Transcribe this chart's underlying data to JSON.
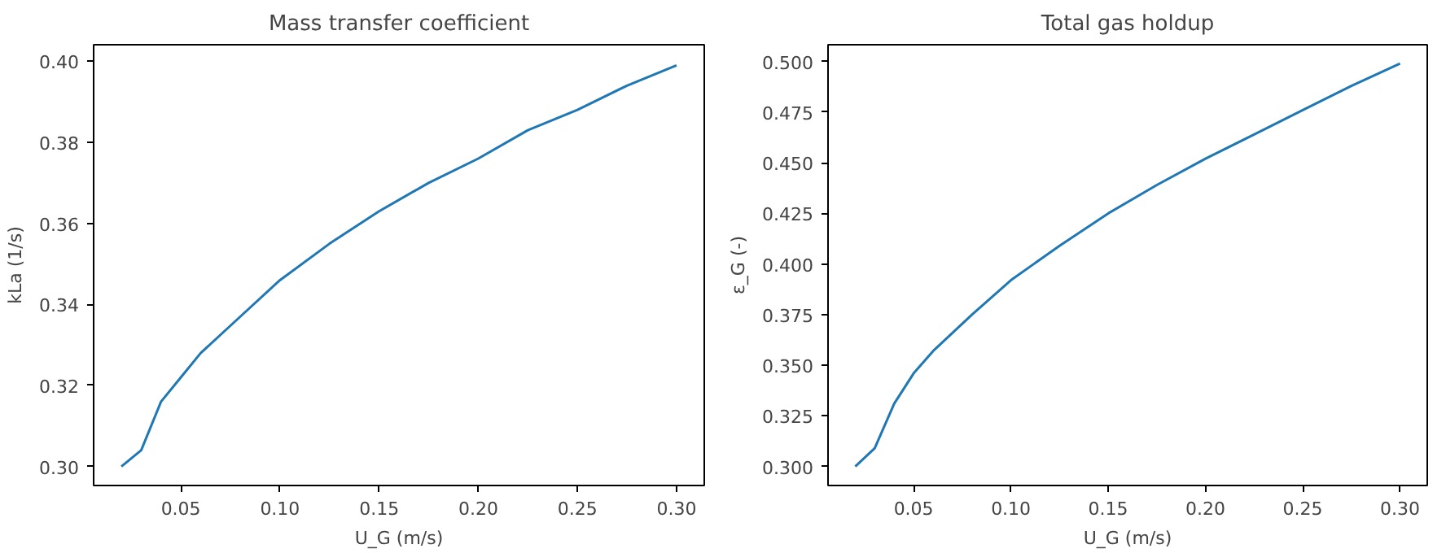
{
  "chart_data": [
    {
      "type": "line",
      "title": "Mass transfer coefficient",
      "xlabel": "U_G (m/s)",
      "ylabel": "kLa (1/s)",
      "x": [
        0.02,
        0.03,
        0.04,
        0.05,
        0.06,
        0.08,
        0.1,
        0.125,
        0.15,
        0.175,
        0.2,
        0.225,
        0.25,
        0.275,
        0.3
      ],
      "series": [
        {
          "color": "#1f77b4",
          "values": [
            0.3,
            0.304,
            0.316,
            0.322,
            0.328,
            0.337,
            0.346,
            0.355,
            0.363,
            0.37,
            0.376,
            0.383,
            0.388,
            0.394,
            0.399
          ]
        }
      ],
      "xlim": [
        0.006,
        0.314
      ],
      "xticks": [
        {
          "value": 0.05,
          "label": "0.05"
        },
        {
          "value": 0.1,
          "label": "0.10"
        },
        {
          "value": 0.15,
          "label": "0.15"
        },
        {
          "value": 0.2,
          "label": "0.20"
        },
        {
          "value": 0.25,
          "label": "0.25"
        },
        {
          "value": 0.3,
          "label": "0.30"
        }
      ],
      "ylim": [
        0.2953,
        0.4041
      ],
      "yticks": [
        {
          "value": 0.3,
          "label": "0.30"
        },
        {
          "value": 0.32,
          "label": "0.32"
        },
        {
          "value": 0.34,
          "label": "0.34"
        },
        {
          "value": 0.36,
          "label": "0.36"
        },
        {
          "value": 0.38,
          "label": "0.38"
        },
        {
          "value": 0.4,
          "label": "0.40"
        }
      ],
      "grid": false
    },
    {
      "type": "line",
      "title": "Total gas holdup",
      "xlabel": "U_G (m/s)",
      "ylabel": "ε_G (-)",
      "x": [
        0.02,
        0.03,
        0.04,
        0.05,
        0.06,
        0.08,
        0.1,
        0.125,
        0.15,
        0.175,
        0.2,
        0.225,
        0.25,
        0.275,
        0.3
      ],
      "series": [
        {
          "color": "#1f77b4",
          "values": [
            0.3,
            0.309,
            0.331,
            0.346,
            0.357,
            0.375,
            0.392,
            0.409,
            0.425,
            0.439,
            0.452,
            0.464,
            0.476,
            0.488,
            0.499
          ]
        }
      ],
      "xlim": [
        0.006,
        0.314
      ],
      "xticks": [
        {
          "value": 0.05,
          "label": "0.05"
        },
        {
          "value": 0.1,
          "label": "0.10"
        },
        {
          "value": 0.15,
          "label": "0.15"
        },
        {
          "value": 0.2,
          "label": "0.20"
        },
        {
          "value": 0.25,
          "label": "0.25"
        },
        {
          "value": 0.3,
          "label": "0.30"
        }
      ],
      "ylim": [
        0.2906,
        0.5083
      ],
      "yticks": [
        {
          "value": 0.3,
          "label": "0.300"
        },
        {
          "value": 0.325,
          "label": "0.325"
        },
        {
          "value": 0.35,
          "label": "0.350"
        },
        {
          "value": 0.375,
          "label": "0.375"
        },
        {
          "value": 0.4,
          "label": "0.400"
        },
        {
          "value": 0.425,
          "label": "0.425"
        },
        {
          "value": 0.45,
          "label": "0.450"
        },
        {
          "value": 0.475,
          "label": "0.475"
        },
        {
          "value": 0.5,
          "label": "0.500"
        }
      ],
      "grid": false
    }
  ]
}
